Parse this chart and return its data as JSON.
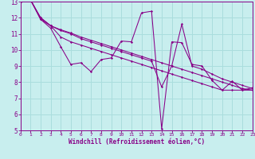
{
  "xlabel": "Windchill (Refroidissement éolien,°C)",
  "xlim": [
    0,
    23
  ],
  "ylim": [
    5,
    13
  ],
  "yticks": [
    5,
    6,
    7,
    8,
    9,
    10,
    11,
    12,
    13
  ],
  "xticks": [
    0,
    1,
    2,
    3,
    4,
    5,
    6,
    7,
    8,
    9,
    10,
    11,
    12,
    13,
    14,
    15,
    16,
    17,
    18,
    19,
    20,
    21,
    22,
    23
  ],
  "bg_color": "#c8eeee",
  "line_color": "#880088",
  "grid_color": "#aadddd",
  "lines": [
    {
      "x": [
        0,
        1,
        2,
        3,
        4,
        5,
        6,
        7,
        8,
        9,
        10,
        11,
        12,
        13,
        14,
        15,
        16,
        17,
        18,
        19,
        20,
        21,
        22,
        23
      ],
      "y": [
        13.0,
        13.15,
        11.9,
        11.35,
        10.2,
        9.1,
        9.2,
        8.65,
        9.4,
        9.5,
        10.55,
        10.5,
        12.3,
        12.4,
        5.1,
        10.5,
        10.45,
        9.1,
        9.0,
        8.1,
        7.5,
        8.05,
        7.5,
        7.65
      ]
    },
    {
      "x": [
        0,
        1,
        2,
        3,
        4,
        5,
        6,
        7,
        8,
        9,
        10,
        11,
        12,
        13,
        14,
        15,
        16,
        17,
        18,
        19,
        20,
        21,
        22,
        23
      ],
      "y": [
        13.0,
        13.1,
        11.9,
        11.5,
        10.8,
        10.5,
        10.3,
        10.1,
        9.9,
        9.7,
        9.5,
        9.3,
        9.1,
        8.9,
        8.7,
        8.5,
        8.3,
        8.1,
        7.9,
        7.7,
        7.5,
        7.5,
        7.5,
        7.5
      ]
    },
    {
      "x": [
        0,
        1,
        2,
        3,
        4,
        5,
        6,
        7,
        8,
        9,
        10,
        11,
        12,
        13,
        14,
        15,
        16,
        17,
        18,
        19,
        20,
        21,
        22,
        23
      ],
      "y": [
        13.0,
        13.1,
        12.0,
        11.5,
        11.2,
        11.0,
        10.7,
        10.5,
        10.3,
        10.1,
        9.9,
        9.7,
        9.5,
        9.3,
        7.7,
        9.0,
        11.6,
        9.0,
        8.8,
        8.5,
        8.2,
        8.0,
        7.8,
        7.6
      ]
    },
    {
      "x": [
        0,
        1,
        2,
        3,
        4,
        5,
        6,
        7,
        8,
        9,
        10,
        11,
        12,
        13,
        14,
        15,
        16,
        17,
        18,
        19,
        20,
        21,
        22,
        23
      ],
      "y": [
        13.0,
        13.1,
        12.0,
        11.5,
        11.25,
        11.05,
        10.8,
        10.6,
        10.4,
        10.2,
        10.0,
        9.8,
        9.6,
        9.4,
        9.2,
        9.0,
        8.8,
        8.6,
        8.4,
        8.2,
        8.0,
        7.8,
        7.6,
        7.5
      ]
    }
  ]
}
